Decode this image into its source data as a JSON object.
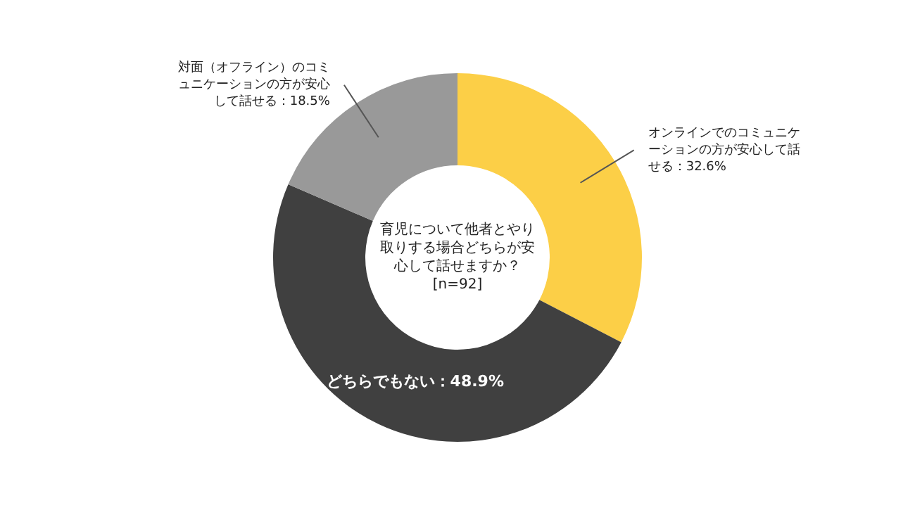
{
  "chart_data": {
    "type": "donut",
    "title": "育児について他者とやり取りする場合どちらが安心して話せますか？",
    "subtitle": "[n=92]",
    "categories": [
      "オンラインでのコミュニケーションの方が安心して話せる：32.6%",
      "どちらでもない：48.9%",
      "対面（オフライン）のコミュニケーションの方が安心して話せる：18.5%"
    ],
    "values": [
      32.6,
      48.9,
      18.5
    ],
    "colors": [
      "#fccf47",
      "#404040",
      "#999999"
    ],
    "legend": false
  }
}
